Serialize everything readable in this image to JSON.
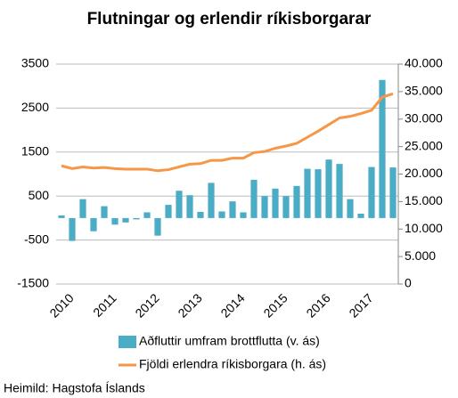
{
  "chart_data": {
    "type": "bar_line",
    "title": "Flutningar og erlendir ríkisborgarar",
    "source": "Heimild: Hagstofa Íslands",
    "categories": [
      "2010",
      null,
      null,
      null,
      "2011",
      null,
      null,
      null,
      "2012",
      null,
      null,
      null,
      "2013",
      null,
      null,
      null,
      "2014",
      null,
      null,
      null,
      "2015",
      null,
      null,
      null,
      "2016",
      null,
      null,
      null,
      "2017",
      null,
      null,
      null
    ],
    "series": [
      {
        "name": "Aðfluttir umfram brottflutta (v. ás)",
        "color": "#4bacc6",
        "kind": "bar",
        "values": [
          60,
          -520,
          430,
          -300,
          270,
          -150,
          -100,
          -30,
          130,
          -400,
          300,
          620,
          520,
          140,
          800,
          150,
          380,
          130,
          870,
          500,
          670,
          500,
          730,
          1120,
          1110,
          1330,
          1230,
          430,
          100,
          1160,
          3140,
          1150
        ]
      },
      {
        "name": "Fjöldi erlendra ríkisborgara (h. ás)",
        "color": "#f79646",
        "kind": "line",
        "axis": "y2",
        "values": [
          21500,
          21000,
          21300,
          21100,
          21200,
          21000,
          20900,
          20900,
          20900,
          20600,
          20800,
          21300,
          21800,
          21900,
          22500,
          22500,
          22900,
          22900,
          23900,
          24100,
          24700,
          25100,
          25600,
          26700,
          27800,
          29000,
          30200,
          30500,
          31000,
          31600,
          34000,
          34600
        ]
      }
    ],
    "ylim": [
      -1500,
      3500
    ],
    "yticks": [
      -1500,
      -500,
      500,
      1500,
      2500,
      3500
    ],
    "y2lim": [
      0,
      40000
    ],
    "y2ticks": [
      0,
      {
        "value": 5000,
        "label": "5.000"
      },
      {
        "value": 10000,
        "label": "10.000"
      },
      {
        "value": 15000,
        "label": "15.000"
      },
      {
        "value": 20000,
        "label": "20.000"
      },
      {
        "value": 25000,
        "label": "25.000"
      },
      {
        "value": 30000,
        "label": "30.000"
      },
      {
        "value": 35000,
        "label": "35.000"
      },
      {
        "value": 40000,
        "label": "40.000"
      }
    ],
    "grid": true
  }
}
